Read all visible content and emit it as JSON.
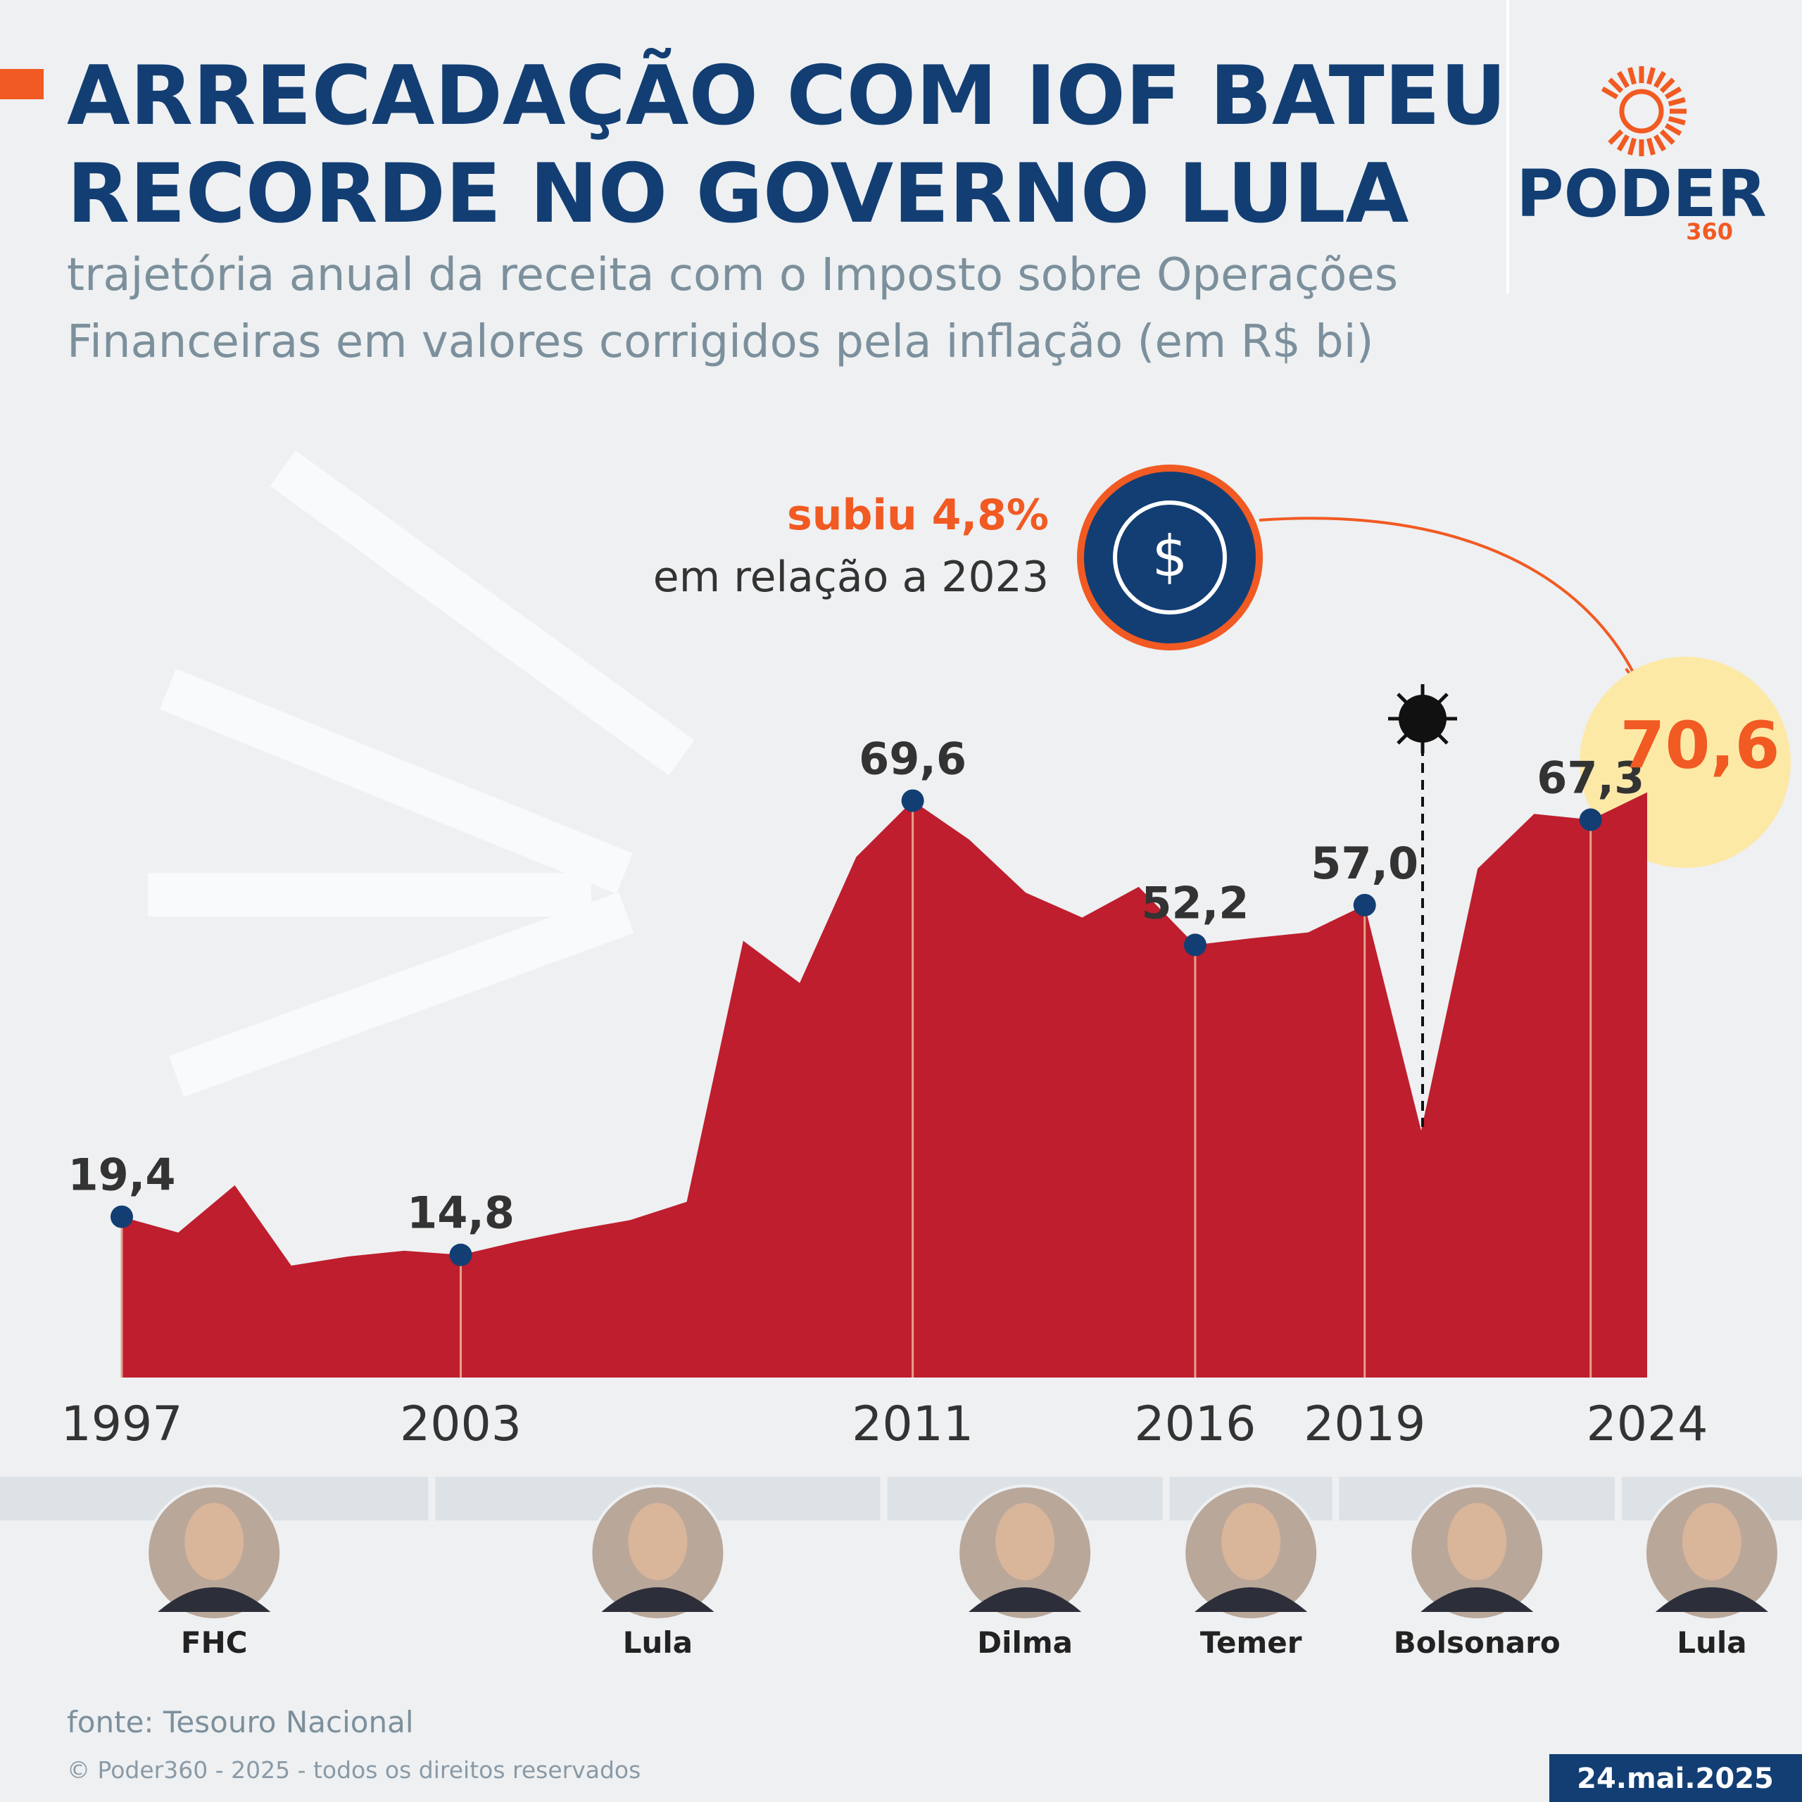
{
  "header": {
    "title_lines": [
      "ARRECADAÇÃO COM IOF BATEU",
      "RECORDE NO GOVERNO LULA"
    ],
    "subtitle_lines": [
      "trajetória anual da receita com o Imposto sobre Operações",
      "Financeiras em valores corrigidos pela inflação (em R$ bi)"
    ]
  },
  "logo": {
    "name": "PODER",
    "number": "360"
  },
  "annotation": {
    "highlight": "subiu 4,8%",
    "text": "em relação a 2023"
  },
  "chart_data": {
    "type": "area",
    "color": "#be1e2d",
    "x": [
      1997,
      1998,
      1999,
      2000,
      2001,
      2002,
      2003,
      2004,
      2005,
      2006,
      2007,
      2008,
      2009,
      2010,
      2011,
      2012,
      2013,
      2014,
      2015,
      2016,
      2017,
      2018,
      2019,
      2020,
      2021,
      2022,
      2023,
      2024
    ],
    "values": [
      19.4,
      17.5,
      23.2,
      13.5,
      14.6,
      15.3,
      14.8,
      16.4,
      17.8,
      19.0,
      21.2,
      52.7,
      47.6,
      62.8,
      69.6,
      64.9,
      58.5,
      55.5,
      59.2,
      52.2,
      53.0,
      53.7,
      57.0,
      29.8,
      61.4,
      68.0,
      67.3,
      70.6
    ],
    "value_labels": [
      "19,4",
      null,
      null,
      null,
      null,
      null,
      "14,8",
      null,
      null,
      null,
      null,
      null,
      null,
      null,
      "69,6",
      null,
      null,
      null,
      null,
      "52,2",
      null,
      null,
      "57,0",
      null,
      null,
      null,
      "67,3",
      "70,6"
    ],
    "xlim": [
      1997,
      2024
    ],
    "xticks": [
      1997,
      2003,
      2011,
      2016,
      2019,
      2024
    ],
    "ylim": [
      0,
      80
    ]
  },
  "presidents": [
    "FHC",
    "Lula",
    "Dilma",
    "Temer",
    "Bolsonaro",
    "Lula"
  ],
  "footer": {
    "source": "fonte: Tesouro Nacional",
    "copyright": "© Poder360 - 2025 - todos os direitos reservados",
    "date": "24.mai.2025"
  }
}
